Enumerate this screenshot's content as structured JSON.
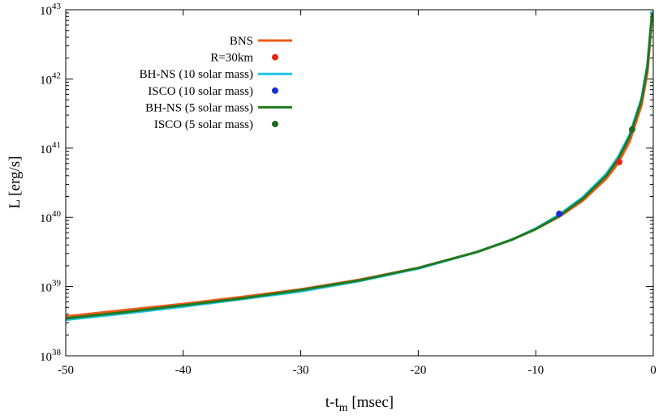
{
  "chart_data": {
    "type": "line",
    "title": "",
    "xlabel_main": "t-t",
    "xlabel_sub": "m",
    "xlabel_units": " [msec]",
    "ylabel": "L [erg/s]",
    "xlim": [
      -50,
      0
    ],
    "ylim_log10": [
      38,
      43
    ],
    "y_scale": "log",
    "x_ticks": [
      -50,
      -40,
      -30,
      -20,
      -10,
      0
    ],
    "x_tick_labels": [
      "-50",
      "-40",
      "-30",
      "-20",
      "-10",
      "0"
    ],
    "y_tick_exponents": [
      38,
      39,
      40,
      41,
      42,
      43
    ],
    "y_tick_base": "10",
    "y_tick_sup": [
      "38",
      "39",
      "40",
      "41",
      "42",
      "43"
    ],
    "legend_position": "top-left",
    "series": [
      {
        "name": "BNS",
        "kind": "line",
        "color": "#f05a1c",
        "x": [
          -50,
          -45,
          -40,
          -35,
          -30,
          -25,
          -20,
          -15,
          -12,
          -10,
          -8,
          -6,
          -4,
          -3,
          -2,
          -1,
          -0.5,
          -0.1
        ],
        "log10L": [
          38.57,
          38.66,
          38.75,
          38.85,
          38.96,
          39.1,
          39.27,
          39.5,
          39.68,
          39.83,
          40.01,
          40.24,
          40.56,
          40.78,
          41.1,
          41.62,
          42.09,
          42.9
        ]
      },
      {
        "name": "R=30km",
        "kind": "point",
        "color": "#e8231c",
        "x": [
          -2.9
        ],
        "log10L": [
          40.8
        ]
      },
      {
        "name": "BH-NS (10 solar mass)",
        "kind": "line",
        "color": "#22c3e8",
        "x": [
          -50,
          -45,
          -40,
          -35,
          -30,
          -25,
          -20,
          -15,
          -12,
          -10,
          -8,
          -6,
          -4,
          -3,
          -2,
          -1,
          -0.5,
          -0.1
        ],
        "log10L": [
          38.52,
          38.61,
          38.71,
          38.82,
          38.93,
          39.08,
          39.26,
          39.5,
          39.68,
          39.84,
          40.04,
          40.29,
          40.63,
          40.87,
          41.2,
          41.72,
          42.2,
          42.98
        ]
      },
      {
        "name": "ISCO (10 solar mass)",
        "kind": "point",
        "color": "#1a2fd6",
        "x": [
          -8.0
        ],
        "log10L": [
          40.05
        ]
      },
      {
        "name": "BH-NS (5 solar mass)",
        "kind": "line",
        "color": "#1f7a1f",
        "x": [
          -50,
          -45,
          -40,
          -35,
          -30,
          -25,
          -20,
          -15,
          -12,
          -10,
          -8,
          -6,
          -4,
          -3,
          -2,
          -1,
          -0.5,
          -0.1
        ],
        "log10L": [
          38.54,
          38.63,
          38.73,
          38.83,
          38.95,
          39.09,
          39.27,
          39.5,
          39.68,
          39.83,
          40.02,
          40.27,
          40.6,
          40.84,
          41.17,
          41.69,
          42.17,
          42.95
        ]
      },
      {
        "name": "ISCO (5 solar mass)",
        "kind": "point",
        "color": "#1f6b1f",
        "x": [
          -1.8
        ],
        "log10L": [
          41.27
        ]
      }
    ]
  }
}
